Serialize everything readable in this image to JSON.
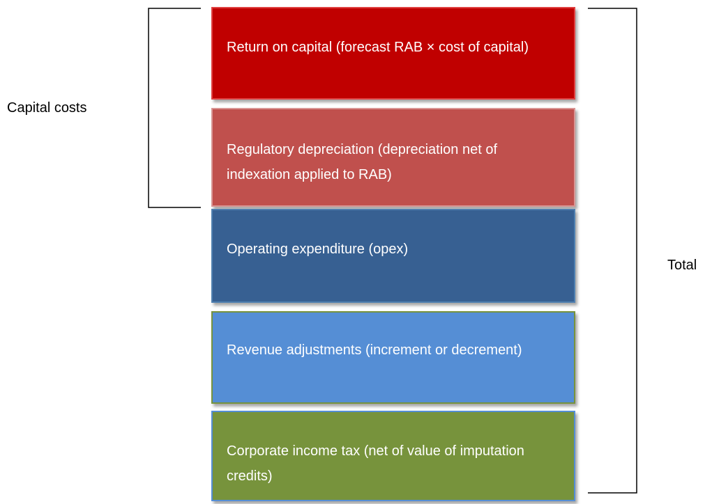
{
  "blocks": [
    {
      "label": "Return on capital (forecast RAB × cost of capital)"
    },
    {
      "label": "Regulatory depreciation (depreciation net of indexation applied to RAB)"
    },
    {
      "label": "Operating expenditure (opex)"
    },
    {
      "label": "Revenue adjustments (increment or decrement)"
    },
    {
      "label": "Corporate income tax (net of value of imputation credits)"
    }
  ],
  "brackets": {
    "left": {
      "label": "Capital costs"
    },
    "right": {
      "label": "Total"
    }
  }
}
